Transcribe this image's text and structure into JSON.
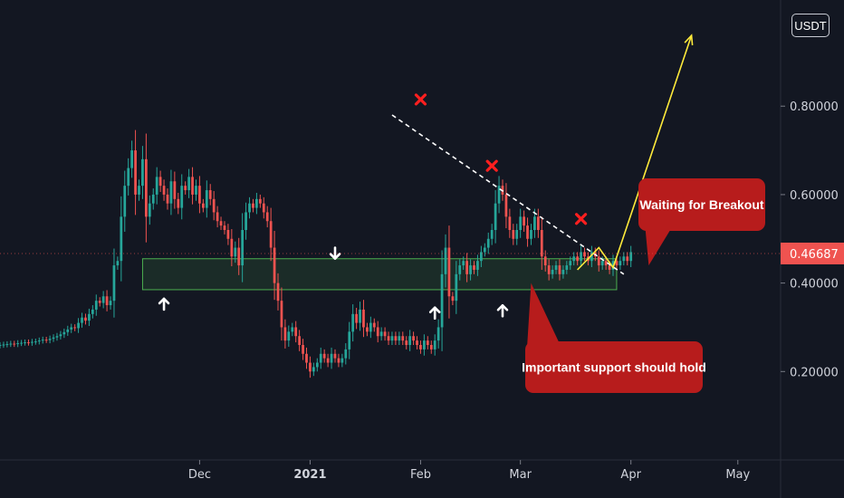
{
  "chart_data": {
    "type": "candlestick",
    "currency": "USDT",
    "price_axis": {
      "ticks": [
        "0.80000",
        "0.60000",
        "0.40000",
        "0.20000"
      ],
      "tick_values": [
        0.8,
        0.6,
        0.4,
        0.2
      ],
      "ylim": [
        0.0,
        1.04
      ]
    },
    "time_axis": {
      "ticks": [
        {
          "label": "Dec",
          "date": "2020-12-01"
        },
        {
          "label": "2021",
          "date": "2021-01-01",
          "bold": true
        },
        {
          "label": "Feb",
          "date": "2021-02-01"
        },
        {
          "label": "Mar",
          "date": "2021-03-01"
        },
        {
          "label": "Apr",
          "date": "2021-04-01"
        },
        {
          "label": "May",
          "date": "2021-05-01"
        }
      ],
      "xlim": [
        "2020-10-06",
        "2021-05-13"
      ]
    },
    "last_price": {
      "label": "0.46687",
      "value": 0.46687
    },
    "colors": {
      "up": "#26a69a",
      "down": "#ef5350",
      "callout": "#b71c1c",
      "support_zone": "#4caf50",
      "projection": "#ffeb3b"
    },
    "close_series_start": "2020-10-06",
    "close_series": [
      0.26,
      0.261,
      0.262,
      0.263,
      0.262,
      0.264,
      0.265,
      0.266,
      0.265,
      0.267,
      0.268,
      0.27,
      0.272,
      0.271,
      0.274,
      0.277,
      0.28,
      0.284,
      0.289,
      0.295,
      0.3,
      0.298,
      0.31,
      0.322,
      0.315,
      0.33,
      0.34,
      0.36,
      0.355,
      0.37,
      0.35,
      0.36,
      0.44,
      0.45,
      0.55,
      0.62,
      0.66,
      0.7,
      0.6,
      0.62,
      0.68,
      0.55,
      0.58,
      0.6,
      0.64,
      0.62,
      0.6,
      0.58,
      0.63,
      0.59,
      0.57,
      0.62,
      0.61,
      0.64,
      0.6,
      0.62,
      0.58,
      0.57,
      0.61,
      0.59,
      0.56,
      0.54,
      0.53,
      0.52,
      0.5,
      0.46,
      0.48,
      0.44,
      0.52,
      0.56,
      0.58,
      0.57,
      0.59,
      0.58,
      0.56,
      0.54,
      0.48,
      0.4,
      0.36,
      0.3,
      0.27,
      0.29,
      0.3,
      0.28,
      0.26,
      0.24,
      0.22,
      0.2,
      0.21,
      0.22,
      0.24,
      0.23,
      0.22,
      0.24,
      0.23,
      0.22,
      0.23,
      0.25,
      0.29,
      0.33,
      0.31,
      0.34,
      0.3,
      0.29,
      0.31,
      0.3,
      0.28,
      0.29,
      0.28,
      0.27,
      0.28,
      0.27,
      0.28,
      0.27,
      0.26,
      0.28,
      0.27,
      0.26,
      0.25,
      0.27,
      0.26,
      0.25,
      0.27,
      0.3,
      0.42,
      0.48,
      0.37,
      0.36,
      0.42,
      0.44,
      0.45,
      0.42,
      0.44,
      0.43,
      0.45,
      0.47,
      0.48,
      0.5,
      0.52,
      0.58,
      0.62,
      0.6,
      0.55,
      0.52,
      0.5,
      0.52,
      0.55,
      0.53,
      0.5,
      0.52,
      0.55,
      0.52,
      0.46,
      0.44,
      0.42,
      0.43,
      0.44,
      0.42,
      0.43,
      0.44,
      0.45,
      0.46,
      0.45,
      0.47,
      0.46,
      0.45,
      0.47,
      0.46,
      0.44,
      0.45,
      0.44,
      0.43,
      0.45,
      0.44,
      0.45,
      0.46,
      0.45,
      0.47
    ],
    "annotations": {
      "support_zone": {
        "low": 0.385,
        "high": 0.455,
        "start": "2020-11-15",
        "end": "2021-03-28"
      },
      "resistance_line": {
        "start": {
          "date": "2021-01-24",
          "value": 0.78
        },
        "end": {
          "date": "2021-03-30",
          "value": 0.42
        }
      },
      "projection_path": [
        {
          "date": "2021-03-17",
          "value": 0.43
        },
        {
          "date": "2021-03-23",
          "value": 0.48
        },
        {
          "date": "2021-03-27",
          "value": 0.435
        },
        {
          "date": "2021-04-18",
          "value": 0.96
        }
      ],
      "rejection_marks": [
        {
          "date": "2021-02-01",
          "value": 0.815
        },
        {
          "date": "2021-02-21",
          "value": 0.665
        },
        {
          "date": "2021-03-18",
          "value": 0.545
        }
      ],
      "arrows_up": [
        {
          "date": "2020-11-21",
          "value": 0.34
        },
        {
          "date": "2021-02-05",
          "value": 0.32
        },
        {
          "date": "2021-02-24",
          "value": 0.325
        }
      ],
      "arrows_down": [
        {
          "date": "2021-01-08",
          "value": 0.48
        }
      ],
      "callouts": [
        {
          "text": "Waiting for Breakout",
          "anchor": {
            "date": "2021-04-06",
            "value": 0.44
          }
        },
        {
          "text": "Important support should hold",
          "anchor": {
            "date": "2021-03-04",
            "value": 0.4
          }
        }
      ]
    }
  }
}
